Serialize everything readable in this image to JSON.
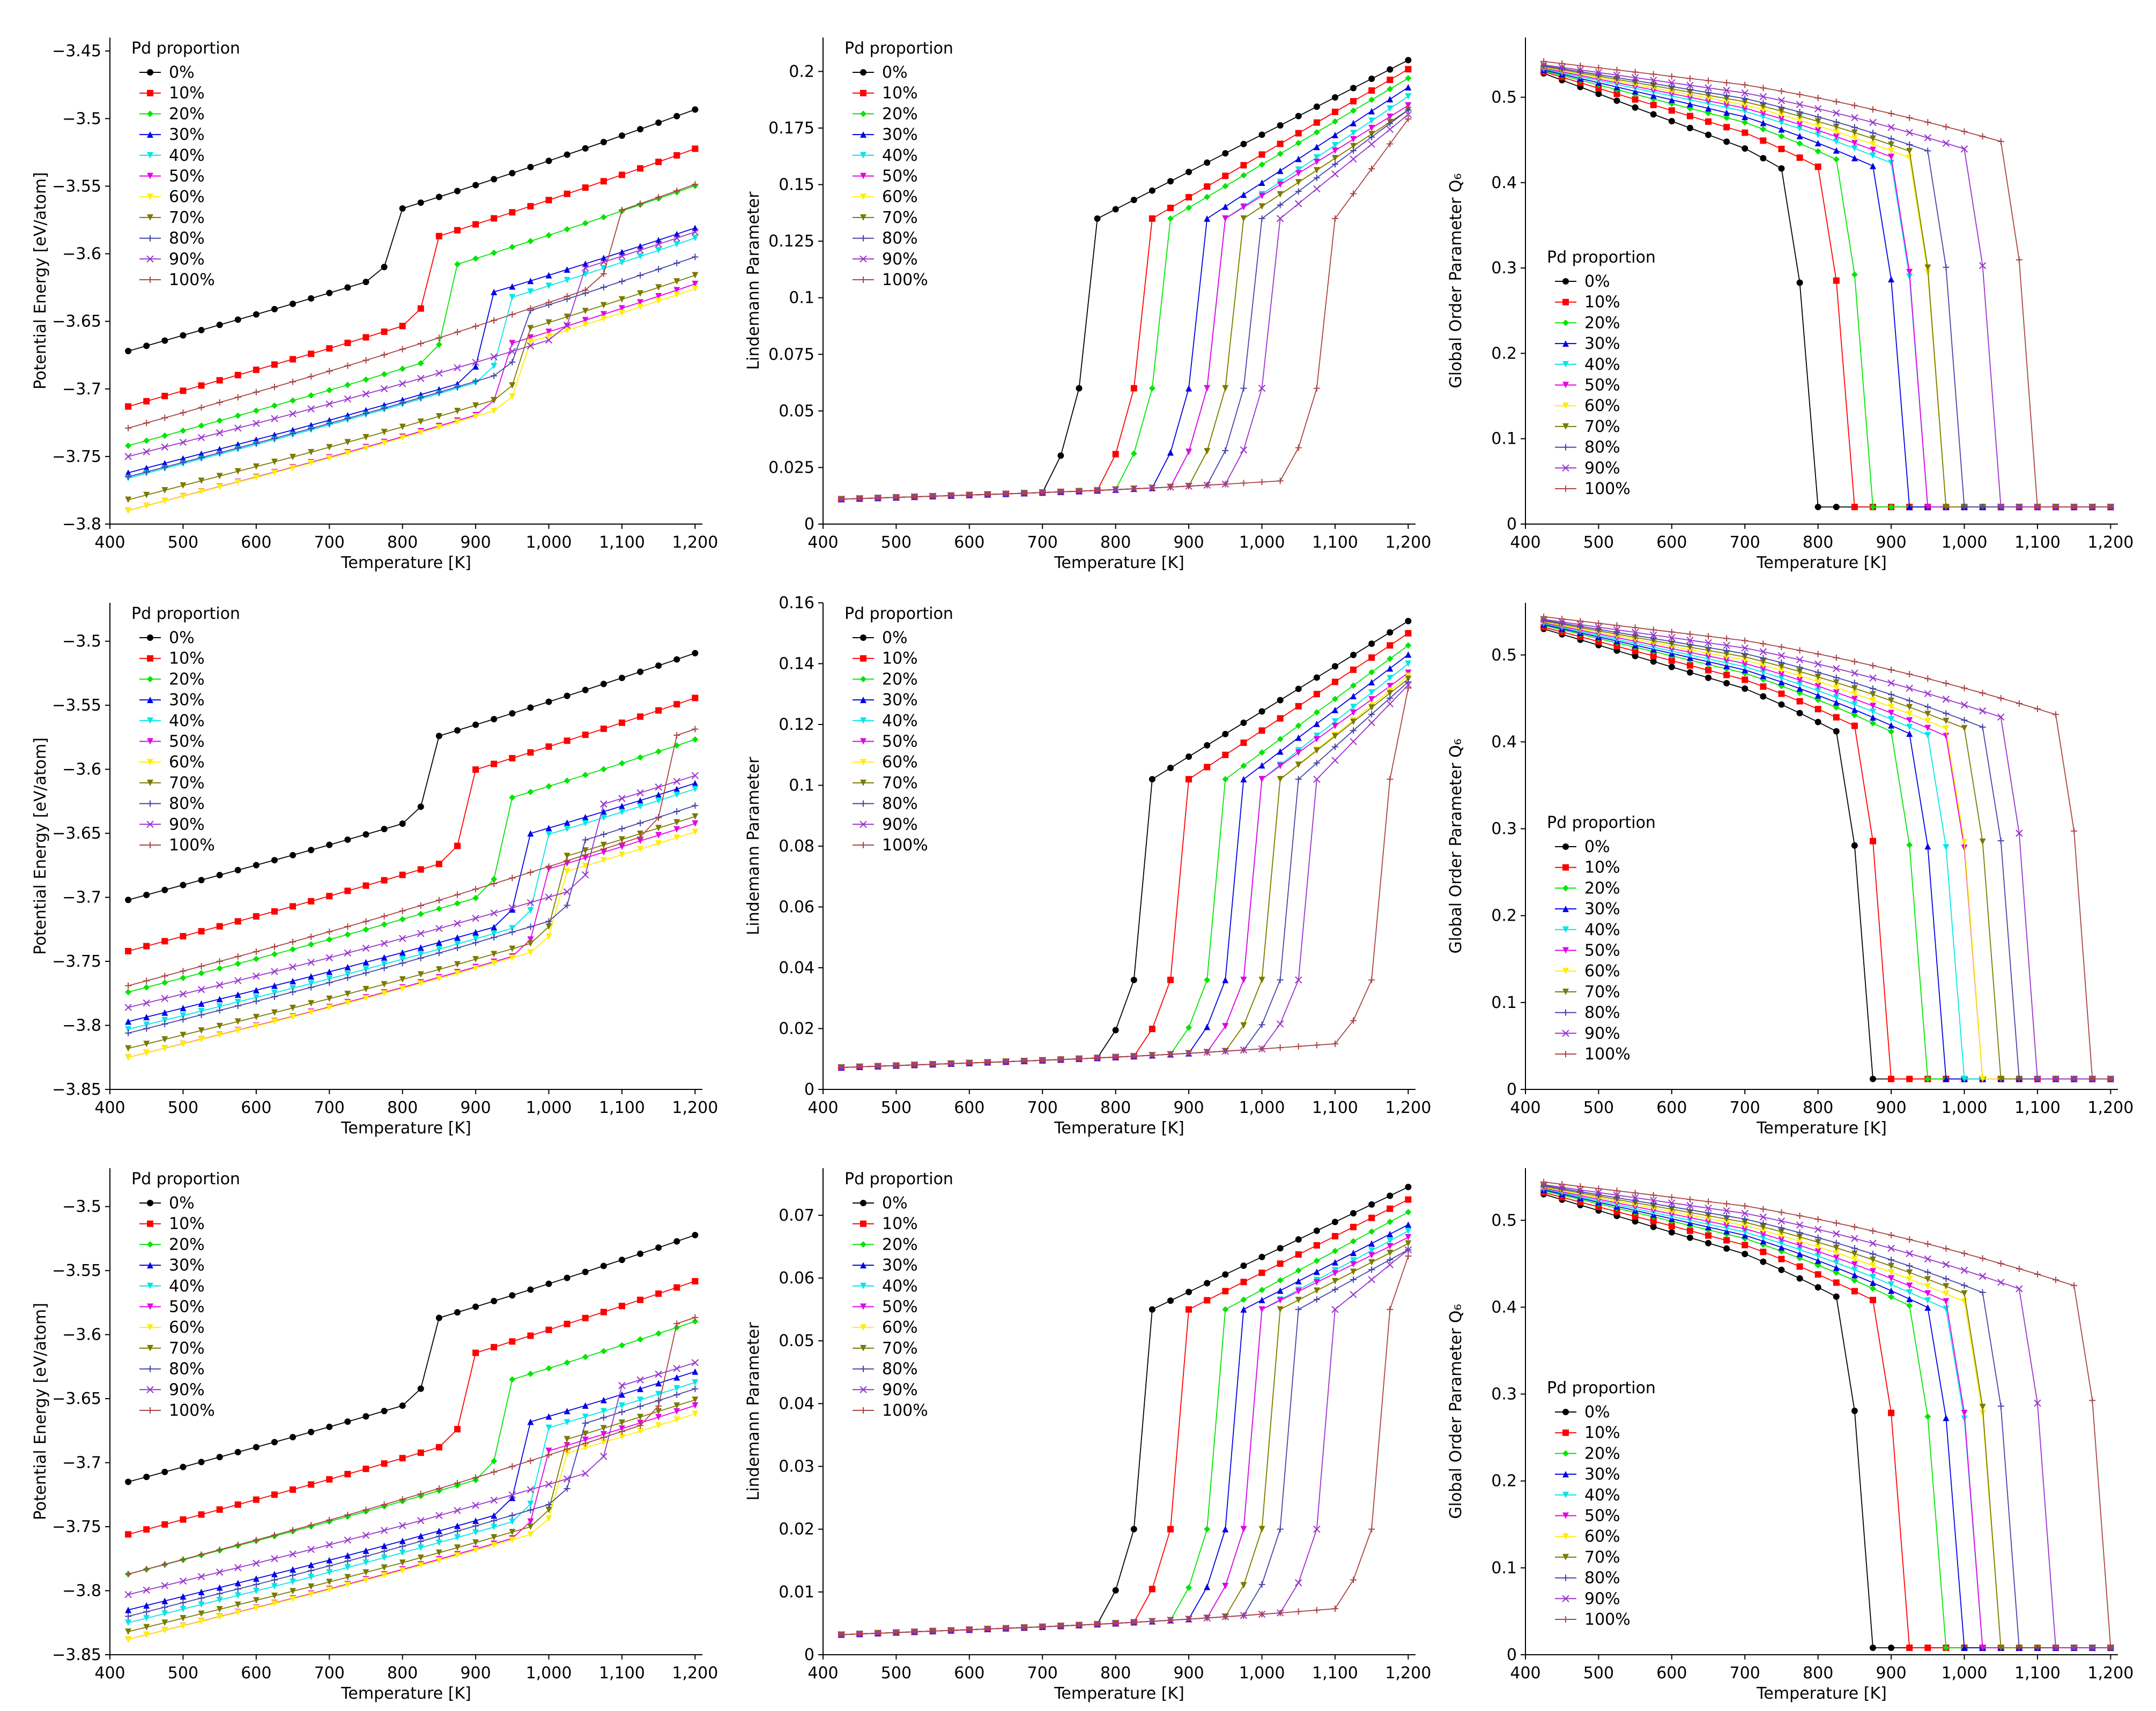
{
  "chart_data": [
    {
      "type": "line",
      "row": 0,
      "col": 0,
      "xlabel": "Temperature [K]",
      "ylabel": "Potential Energy [eV/atom]",
      "xticks": [
        400,
        500,
        600,
        700,
        800,
        900,
        1000,
        1100,
        1200
      ],
      "xtick_labels": [
        "400",
        "500",
        "600",
        "700",
        "800",
        "900",
        "1,000",
        "1,100",
        "1,200"
      ],
      "xlim": [
        400,
        1210
      ],
      "ylim": [
        -3.8,
        -3.44
      ],
      "yticks": [
        -3.8,
        -3.75,
        -3.7,
        -3.65,
        -3.6,
        -3.55,
        -3.5,
        -3.45
      ],
      "ytick_labels": [
        "−3.8",
        "−3.75",
        "−3.7",
        "−3.65",
        "−3.6",
        "−3.55",
        "−3.5",
        "−3.45"
      ],
      "legend_title": "Pd proportion",
      "legend_position": "upper-left",
      "kind": "energy",
      "E0": [
        -3.672,
        -3.713,
        -3.742,
        -3.762,
        -3.766,
        -3.79,
        -3.79,
        -3.782,
        -3.765,
        -3.75,
        -3.729
      ],
      "slope": [
        0.000155,
        0.000155,
        0.000148,
        0.00014,
        0.000142,
        0.000142,
        0.00014,
        0.00014,
        0.000142,
        0.00014,
        0.000152
      ],
      "Tm": [
        800,
        850,
        875,
        925,
        950,
        950,
        975,
        975,
        975,
        1050,
        1100
      ],
      "jump": [
        0.046,
        0.058,
        0.065,
        0.06,
        0.055,
        0.045,
        0.043,
        0.045,
        0.04,
        0.045,
        0.05
      ]
    },
    {
      "type": "line",
      "row": 0,
      "col": 1,
      "xlabel": "Temperature [K]",
      "ylabel": "Lindemann Parameter",
      "xticks": [
        400,
        500,
        600,
        700,
        800,
        900,
        1000,
        1100,
        1200
      ],
      "xtick_labels": [
        "400",
        "500",
        "600",
        "700",
        "800",
        "900",
        "1,000",
        "1,100",
        "1,200"
      ],
      "xlim": [
        400,
        1210
      ],
      "ylim": [
        0,
        0.215
      ],
      "yticks": [
        0,
        0.025,
        0.05,
        0.075,
        0.1,
        0.125,
        0.15,
        0.175,
        0.2
      ],
      "ytick_labels": [
        "0",
        "0.025",
        "0.05",
        "0.075",
        "0.1",
        "0.125",
        "0.15",
        "0.175",
        "0.2"
      ],
      "legend_title": "Pd proportion",
      "legend_position": "upper-left",
      "kind": "lindemann",
      "base0": 0.011,
      "baseslope": 1.05e-05,
      "pre": 0.06,
      "post": 0.135,
      "top": 0.205,
      "Tm": [
        775,
        850,
        875,
        925,
        950,
        950,
        975,
        975,
        1000,
        1025,
        1100
      ],
      "topdrop": [
        0,
        0.004,
        0.008,
        0.012,
        0.016,
        0.02,
        0.022,
        0.022,
        0.022,
        0.024,
        0.026
      ]
    },
    {
      "type": "line",
      "row": 0,
      "col": 2,
      "xlabel": "Temperature [K]",
      "ylabel": "Global Order Parameter Q₆",
      "xticks": [
        400,
        500,
        600,
        700,
        800,
        900,
        1000,
        1100,
        1200
      ],
      "xtick_labels": [
        "400",
        "500",
        "600",
        "700",
        "800",
        "900",
        "1,000",
        "1,100",
        "1,200"
      ],
      "xlim": [
        400,
        1210
      ],
      "ylim": [
        0,
        0.57
      ],
      "yticks": [
        0,
        0.1,
        0.2,
        0.3,
        0.4,
        0.5
      ],
      "ytick_labels": [
        "0",
        "0.1",
        "0.2",
        "0.3",
        "0.4",
        "0.5"
      ],
      "legend_title": "Pd proportion",
      "legend_position": "center-left",
      "kind": "q6",
      "q0": [
        0.528,
        0.53,
        0.531,
        0.532,
        0.533,
        0.534,
        0.535,
        0.536,
        0.537,
        0.538,
        0.542
      ],
      "qslope": [
        0.00032,
        0.00026,
        0.00022,
        0.0002,
        0.00018,
        0.00017,
        0.00016,
        0.00015,
        0.00014,
        0.00012,
        0.0001
      ],
      "Tm": [
        775,
        825,
        850,
        900,
        925,
        925,
        950,
        950,
        975,
        1025,
        1075
      ],
      "tail": 0.02
    },
    {
      "type": "line",
      "row": 1,
      "col": 0,
      "xlabel": "Temperature [K]",
      "ylabel": "Potential Energy [eV/atom]",
      "xticks": [
        400,
        500,
        600,
        700,
        800,
        900,
        1000,
        1100,
        1200
      ],
      "xtick_labels": [
        "400",
        "500",
        "600",
        "700",
        "800",
        "900",
        "1,000",
        "1,100",
        "1,200"
      ],
      "xlim": [
        400,
        1210
      ],
      "ylim": [
        -3.85,
        -3.47
      ],
      "yticks": [
        -3.85,
        -3.8,
        -3.75,
        -3.7,
        -3.65,
        -3.6,
        -3.55,
        -3.5
      ],
      "ytick_labels": [
        "−3.85",
        "−3.8",
        "−3.75",
        "−3.7",
        "−3.65",
        "−3.6",
        "−3.55",
        "−3.5"
      ],
      "legend_title": "Pd proportion",
      "legend_position": "upper-left",
      "kind": "energy",
      "E0": [
        -3.702,
        -3.742,
        -3.774,
        -3.797,
        -3.803,
        -3.825,
        -3.825,
        -3.818,
        -3.806,
        -3.786,
        -3.769
      ],
      "slope": [
        0.000155,
        0.000155,
        0.000148,
        0.00014,
        0.000142,
        0.000142,
        0.00014,
        0.00014,
        0.000142,
        0.00014,
        0.000152
      ],
      "Tm": [
        850,
        900,
        950,
        975,
        1000,
        1000,
        1025,
        1025,
        1050,
        1075,
        1175
      ],
      "jump": [
        0.06,
        0.065,
        0.07,
        0.065,
        0.065,
        0.06,
        0.055,
        0.06,
        0.055,
        0.06,
        0.07
      ]
    },
    {
      "type": "line",
      "row": 1,
      "col": 1,
      "xlabel": "Temperature [K]",
      "ylabel": "Lindemann Parameter",
      "xticks": [
        400,
        500,
        600,
        700,
        800,
        900,
        1000,
        1100,
        1200
      ],
      "xtick_labels": [
        "400",
        "500",
        "600",
        "700",
        "800",
        "900",
        "1,000",
        "1,100",
        "1,200"
      ],
      "xlim": [
        400,
        1210
      ],
      "ylim": [
        0,
        0.16
      ],
      "yticks": [
        0,
        0.02,
        0.04,
        0.06,
        0.08,
        0.1,
        0.12,
        0.14,
        0.16
      ],
      "ytick_labels": [
        "0",
        "0.02",
        "0.04",
        "0.06",
        "0.08",
        "0.1",
        "0.12",
        "0.14",
        "0.16"
      ],
      "legend_title": "Pd proportion",
      "legend_position": "upper-left",
      "kind": "lindemann",
      "base0": 0.0072,
      "baseslope": 8.5e-06,
      "pre": 0.036,
      "post": 0.102,
      "top": 0.154,
      "Tm": [
        850,
        900,
        950,
        975,
        1000,
        1000,
        1025,
        1025,
        1050,
        1075,
        1175
      ],
      "topdrop": [
        0,
        0.004,
        0.008,
        0.011,
        0.014,
        0.017,
        0.018,
        0.019,
        0.02,
        0.021,
        0.022
      ]
    },
    {
      "type": "line",
      "row": 1,
      "col": 2,
      "xlabel": "Temperature [K]",
      "ylabel": "Global Order Parameter Q₆",
      "xticks": [
        400,
        500,
        600,
        700,
        800,
        900,
        1000,
        1100,
        1200
      ],
      "xtick_labels": [
        "400",
        "500",
        "600",
        "700",
        "800",
        "900",
        "1,000",
        "1,100",
        "1,200"
      ],
      "xlim": [
        400,
        1210
      ],
      "ylim": [
        0,
        0.56
      ],
      "yticks": [
        0,
        0.1,
        0.2,
        0.3,
        0.4,
        0.5
      ],
      "ytick_labels": [
        "0",
        "0.1",
        "0.2",
        "0.3",
        "0.4",
        "0.5"
      ],
      "legend_title": "Pd proportion",
      "legend_position": "center-left",
      "kind": "q6",
      "q0": [
        0.53,
        0.532,
        0.534,
        0.535,
        0.536,
        0.537,
        0.538,
        0.539,
        0.54,
        0.541,
        0.544
      ],
      "qslope": [
        0.00025,
        0.00022,
        0.0002,
        0.00019,
        0.00018,
        0.00017,
        0.00016,
        0.00015,
        0.00014,
        0.00012,
        0.0001
      ],
      "Tm": [
        850,
        875,
        925,
        950,
        975,
        1000,
        1000,
        1025,
        1050,
        1075,
        1150
      ],
      "tail": 0.012
    },
    {
      "type": "line",
      "row": 2,
      "col": 0,
      "xlabel": "Temperature [K]",
      "ylabel": "Potential Energy [eV/atom]",
      "xticks": [
        400,
        500,
        600,
        700,
        800,
        900,
        1000,
        1100,
        1200
      ],
      "xtick_labels": [
        "400",
        "500",
        "600",
        "700",
        "800",
        "900",
        "1,000",
        "1,100",
        "1,200"
      ],
      "xlim": [
        400,
        1210
      ],
      "ylim": [
        -3.85,
        -3.47
      ],
      "yticks": [
        -3.85,
        -3.8,
        -3.75,
        -3.7,
        -3.65,
        -3.6,
        -3.55,
        -3.5
      ],
      "ytick_labels": [
        "−3.85",
        "−3.8",
        "−3.75",
        "−3.7",
        "−3.65",
        "−3.6",
        "−3.55",
        "−3.5"
      ],
      "legend_title": "Pd proportion",
      "legend_position": "upper-left",
      "kind": "energy",
      "E0": [
        -3.715,
        -3.756,
        -3.787,
        -3.815,
        -3.825,
        -3.838,
        -3.838,
        -3.832,
        -3.82,
        -3.803,
        -3.787
      ],
      "slope": [
        0.000155,
        0.000155,
        0.000148,
        0.00014,
        0.000142,
        0.000142,
        0.00014,
        0.00014,
        0.000142,
        0.00014,
        0.000152
      ],
      "Tm": [
        850,
        900,
        950,
        975,
        1000,
        1000,
        1025,
        1025,
        1050,
        1100,
        1175
      ],
      "jump": [
        0.06,
        0.065,
        0.07,
        0.065,
        0.065,
        0.06,
        0.055,
        0.06,
        0.055,
        0.06,
        0.07
      ]
    },
    {
      "type": "line",
      "row": 2,
      "col": 1,
      "xlabel": "Temperature [K]",
      "ylabel": "Lindemann Parameter",
      "xticks": [
        400,
        500,
        600,
        700,
        800,
        900,
        1000,
        1100,
        1200
      ],
      "xtick_labels": [
        "400",
        "500",
        "600",
        "700",
        "800",
        "900",
        "1,000",
        "1,100",
        "1,200"
      ],
      "xlim": [
        400,
        1210
      ],
      "ylim": [
        0,
        0.0775
      ],
      "yticks": [
        0,
        0.01,
        0.02,
        0.03,
        0.04,
        0.05,
        0.06,
        0.07
      ],
      "ytick_labels": [
        "0",
        "0.01",
        "0.02",
        "0.03",
        "0.04",
        "0.05",
        "0.06",
        "0.07"
      ],
      "legend_title": "Pd proportion",
      "legend_position": "upper-left",
      "kind": "lindemann",
      "base0": 0.0032,
      "baseslope": 4.5e-06,
      "pre": 0.02,
      "post": 0.055,
      "top": 0.0745,
      "Tm": [
        850,
        900,
        950,
        975,
        1000,
        1000,
        1025,
        1025,
        1050,
        1100,
        1175
      ],
      "topdrop": [
        0,
        0.002,
        0.004,
        0.006,
        0.007,
        0.008,
        0.009,
        0.009,
        0.01,
        0.01,
        0.011
      ]
    },
    {
      "type": "line",
      "row": 2,
      "col": 2,
      "xlabel": "Temperature [K]",
      "ylabel": "Global Order Parameter Q₆",
      "xticks": [
        400,
        500,
        600,
        700,
        800,
        900,
        1000,
        1100,
        1200
      ],
      "xtick_labels": [
        "400",
        "500",
        "600",
        "700",
        "800",
        "900",
        "1,000",
        "1,100",
        "1,200"
      ],
      "xlim": [
        400,
        1210
      ],
      "ylim": [
        0,
        0.56
      ],
      "yticks": [
        0,
        0.1,
        0.2,
        0.3,
        0.4,
        0.5
      ],
      "ytick_labels": [
        "0",
        "0.1",
        "0.2",
        "0.3",
        "0.4",
        "0.5"
      ],
      "legend_title": "Pd proportion",
      "legend_position": "center-left",
      "kind": "q6",
      "q0": [
        0.53,
        0.532,
        0.534,
        0.535,
        0.536,
        0.537,
        0.538,
        0.539,
        0.54,
        0.541,
        0.544
      ],
      "qslope": [
        0.00025,
        0.00022,
        0.0002,
        0.00019,
        0.00018,
        0.00017,
        0.00016,
        0.00015,
        0.00014,
        0.00012,
        0.0001
      ],
      "Tm": [
        850,
        900,
        950,
        975,
        1000,
        1000,
        1025,
        1025,
        1050,
        1100,
        1175
      ],
      "tail": 0.008
    }
  ],
  "series_labels": [
    "0%",
    "10%",
    "20%",
    "30%",
    "40%",
    "50%",
    "60%",
    "70%",
    "80%",
    "90%",
    "100%"
  ],
  "series_colors": [
    "#000000",
    "#ff0000",
    "#00e600",
    "#0000e6",
    "#00e6e6",
    "#e600e6",
    "#ffee00",
    "#7a7a00",
    "#4444aa",
    "#9933cc",
    "#aa4444"
  ],
  "series_markers": [
    "circle",
    "square",
    "diamond",
    "triangle",
    "tri-down",
    "tri-down",
    "tri-down",
    "tri-down",
    "plus",
    "x",
    "plus"
  ]
}
